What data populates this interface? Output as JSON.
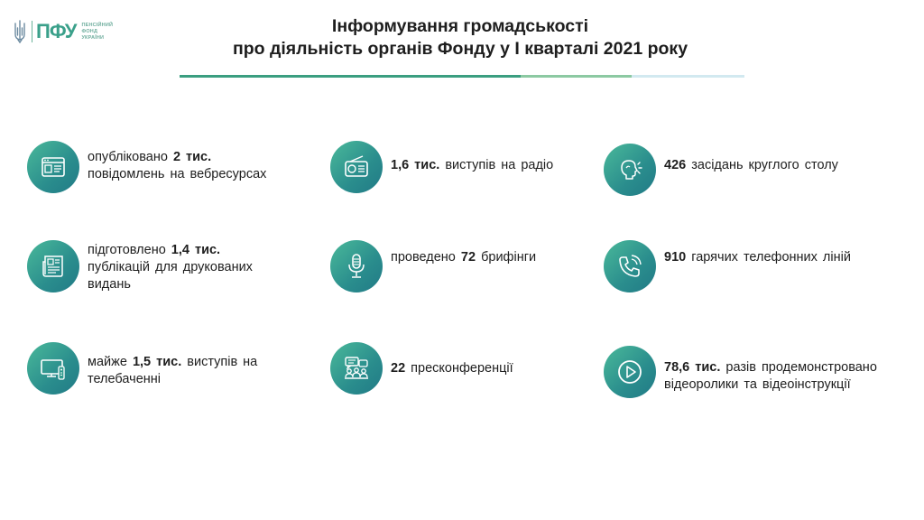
{
  "logo": {
    "mark": "ПФУ",
    "sub_line1": "ПЕНСІЙНИЙ",
    "sub_line2": "ФОНД",
    "sub_line3": "УКРАЇНИ"
  },
  "title": {
    "line1": "Інформування громадськості",
    "line2": "про діяльність органів Фонду у І кварталі 2021 року"
  },
  "colors": {
    "accent": "#3aa08a",
    "circle_start": "#4ab99a",
    "circle_end": "#217a86"
  },
  "items": [
    {
      "icon": "web-page-icon",
      "pre": "опубліковано ",
      "bold": "2 тис.",
      "post": "",
      "line2": "повідомлень  на вебресурсах",
      "line3": ""
    },
    {
      "icon": "radio-icon",
      "pre": "",
      "bold": "1,6 тис.",
      "post": " виступів на радіо",
      "line2": "",
      "line3": ""
    },
    {
      "icon": "speaking-head-icon",
      "pre": "",
      "bold": "426",
      "post": " засідань круглого столу",
      "line2": "",
      "line3": ""
    },
    {
      "icon": "newspaper-icon",
      "pre": "підготовлено ",
      "bold": "1,4 тис.",
      "post": "",
      "line2": "публікацій  для  друкованих",
      "line3": "видань"
    },
    {
      "icon": "microphone-icon",
      "pre": "проведено ",
      "bold": "72",
      "post": " брифінги",
      "line2": "",
      "line3": ""
    },
    {
      "icon": "phone-icon",
      "pre": "",
      "bold": "910",
      "post": " гарячих  телефонних  ліній",
      "line2": "",
      "line3": ""
    },
    {
      "icon": "tv-icon",
      "pre": "майже  ",
      "bold": "1,5 тис.",
      "post": "  виступів  на",
      "line2": "телебаченні",
      "line3": ""
    },
    {
      "icon": "press-conference-icon",
      "pre": "",
      "bold": "22",
      "post": " пресконференції",
      "line2": "",
      "line3": ""
    },
    {
      "icon": "play-icon",
      "pre": "",
      "bold": "78,6 тис.",
      "post": "  разів  продемонстровано",
      "line2": "відеоролики  та  відеоінструкції",
      "line3": ""
    }
  ]
}
